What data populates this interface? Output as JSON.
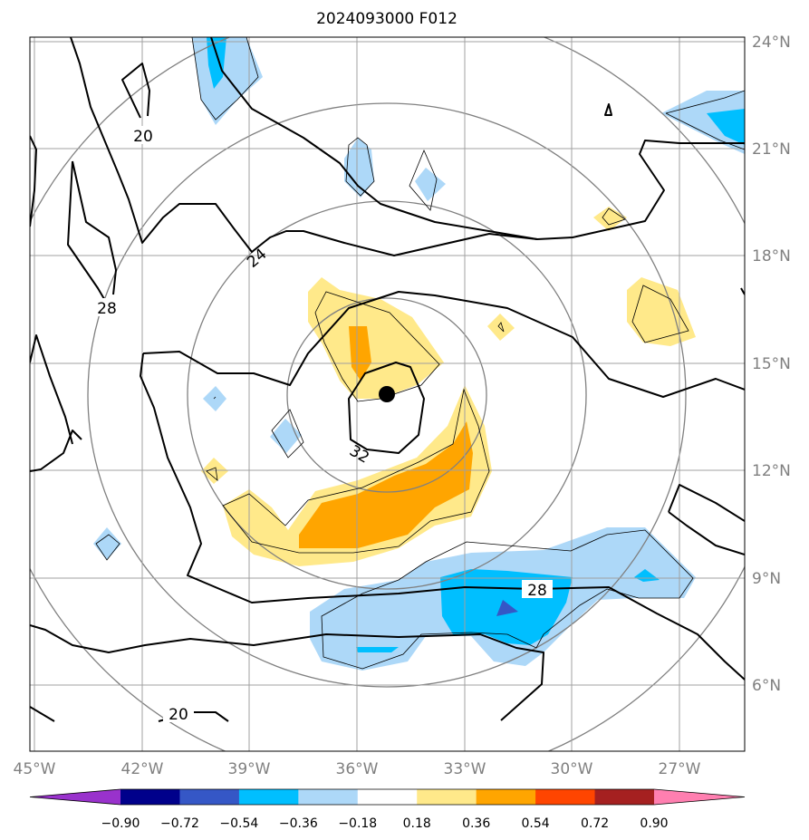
{
  "title": "2024093000 F012",
  "map": {
    "lon_range": [
      -45.2,
      -25.0
    ],
    "lat_range": [
      4.2,
      24.2
    ],
    "lon_ticks": [
      "45°W",
      "42°W",
      "39°W",
      "36°W",
      "33°W",
      "30°W",
      "27°W"
    ],
    "lat_ticks": [
      "24°N",
      "21°N",
      "18°N",
      "15°N",
      "12°N",
      "9°N",
      "6°N"
    ],
    "grid": true,
    "center_marker": {
      "lon": -35.2,
      "lat": 14.2
    }
  },
  "contour_labels": [
    "20",
    "28",
    "24",
    "32",
    "28",
    "20"
  ],
  "colorbar": {
    "tick_labels": [
      "−0.90",
      "−0.72",
      "−0.54",
      "−0.36",
      "−0.18",
      "0.18",
      "0.36",
      "0.54",
      "0.72",
      "0.90"
    ],
    "colors": [
      "#9932cc",
      "#00008b",
      "#3557c6",
      "#00bfff",
      "#add8f8",
      "#ffffff",
      "#ffe98a",
      "#ffa500",
      "#ff4500",
      "#a52020",
      "#ff7fb0"
    ],
    "extend": "both"
  }
}
